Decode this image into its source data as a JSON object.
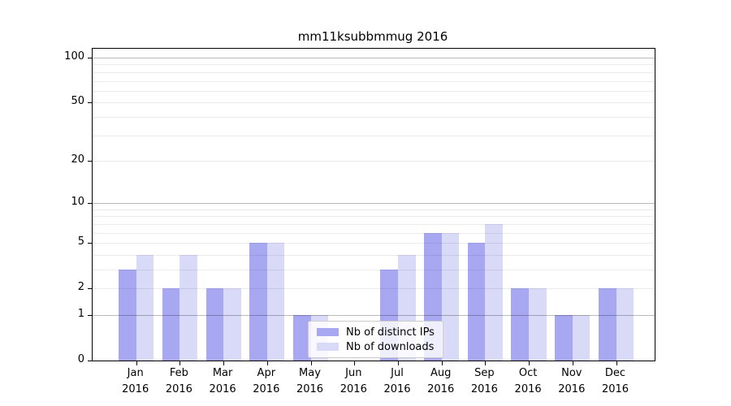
{
  "chart_data": {
    "type": "bar",
    "title": "mm11ksubbmmug 2016",
    "categories": [
      "Jan",
      "Feb",
      "Mar",
      "Apr",
      "May",
      "Jun",
      "Jul",
      "Aug",
      "Sep",
      "Oct",
      "Nov",
      "Dec"
    ],
    "x_tick_second_line": "2016",
    "series": [
      {
        "name": "Nb of distinct IPs",
        "color": "#a8a8f2",
        "values": [
          3,
          2,
          2,
          5,
          1,
          0,
          3,
          6,
          5,
          2,
          1,
          2
        ]
      },
      {
        "name": "Nb of downloads",
        "color": "#d9d9f8",
        "values": [
          4,
          4,
          2,
          5,
          1,
          0,
          4,
          6,
          7,
          2,
          1,
          2
        ]
      }
    ],
    "y_scale": "log1p",
    "ylim": [
      0,
      115
    ],
    "y_ticks": [
      0,
      1,
      2,
      5,
      10,
      20,
      50,
      100
    ],
    "y_tick_labels": [
      "0",
      "1",
      "2",
      "5",
      "10",
      "20",
      "50",
      "100"
    ],
    "y_gridlines": [
      1,
      2,
      3,
      4,
      5,
      6,
      7,
      8,
      9,
      10,
      20,
      30,
      40,
      50,
      60,
      70,
      80,
      90,
      100
    ],
    "y_gridlines_major": [
      1,
      10,
      100
    ],
    "grid": "horizontal",
    "legend": {
      "location": "lower center",
      "entries": [
        "Nb of distinct IPs",
        "Nb of downloads"
      ]
    }
  },
  "colors": {
    "bar_distinct_ips": "#a8a8f2",
    "bar_downloads": "#d9d9f8",
    "axis": "#000000",
    "background": "#ffffff",
    "legend_border": "#cccccc"
  }
}
